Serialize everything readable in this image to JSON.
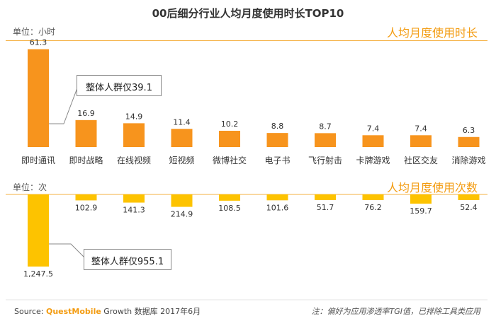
{
  "title": "00后细分行业人均月度使用时长TOP10",
  "colors": {
    "orange": "#f7941d",
    "yellow": "#fdc300",
    "accent_text": "#f39c12",
    "line": "#f5b041"
  },
  "top": {
    "unit_label": "单位：小时",
    "section_label": "人均月度使用时长",
    "callout": "整体人群仅39.1"
  },
  "bottom": {
    "unit_label": "单位：次",
    "section_label": "人均月度使用次数",
    "callout": "整体人群仅955.1"
  },
  "footer": {
    "source_prefix": "Source: ",
    "source_brand": "QuestMobile",
    "source_suffix": " Growth 数据库 2017年6月",
    "note": "注：偏好为应用渗透率TGI值，已排除工具类应用"
  },
  "chart_data": [
    {
      "type": "bar",
      "title": "人均月度使用时长",
      "ylabel": "单位：小时",
      "categories": [
        "即时通讯",
        "即时战略",
        "在线视频",
        "短视频",
        "微博社交",
        "电子书",
        "飞行射击",
        "卡牌游戏",
        "社区交友",
        "消除游戏"
      ],
      "values": [
        61.3,
        16.9,
        14.9,
        11.4,
        10.2,
        8.8,
        8.7,
        7.4,
        7.4,
        6.3
      ],
      "value_labels": [
        "61.3",
        "16.9",
        "14.9",
        "11.4",
        "10.2",
        "8.8",
        "8.7",
        "7.4",
        "7.4",
        "6.3"
      ],
      "annotation": "整体人群仅39.1",
      "ylim": [
        0,
        65
      ]
    },
    {
      "type": "bar",
      "title": "人均月度使用次数",
      "ylabel": "单位：次",
      "orientation": "downward",
      "categories": [
        "即时通讯",
        "即时战略",
        "在线视频",
        "短视频",
        "微博社交",
        "电子书",
        "飞行射击",
        "卡牌游戏",
        "社区交友",
        "消除游戏"
      ],
      "values": [
        1247.5,
        102.9,
        141.3,
        214.9,
        108.5,
        101.6,
        51.7,
        76.2,
        159.7,
        52.4
      ],
      "value_labels": [
        "1,247.5",
        "102.9",
        "141.3",
        "214.9",
        "108.5",
        "101.6",
        "51.7",
        "76.2",
        "159.7",
        "52.4"
      ],
      "annotation": "整体人群仅955.1",
      "ylim": [
        0,
        1300
      ]
    }
  ]
}
